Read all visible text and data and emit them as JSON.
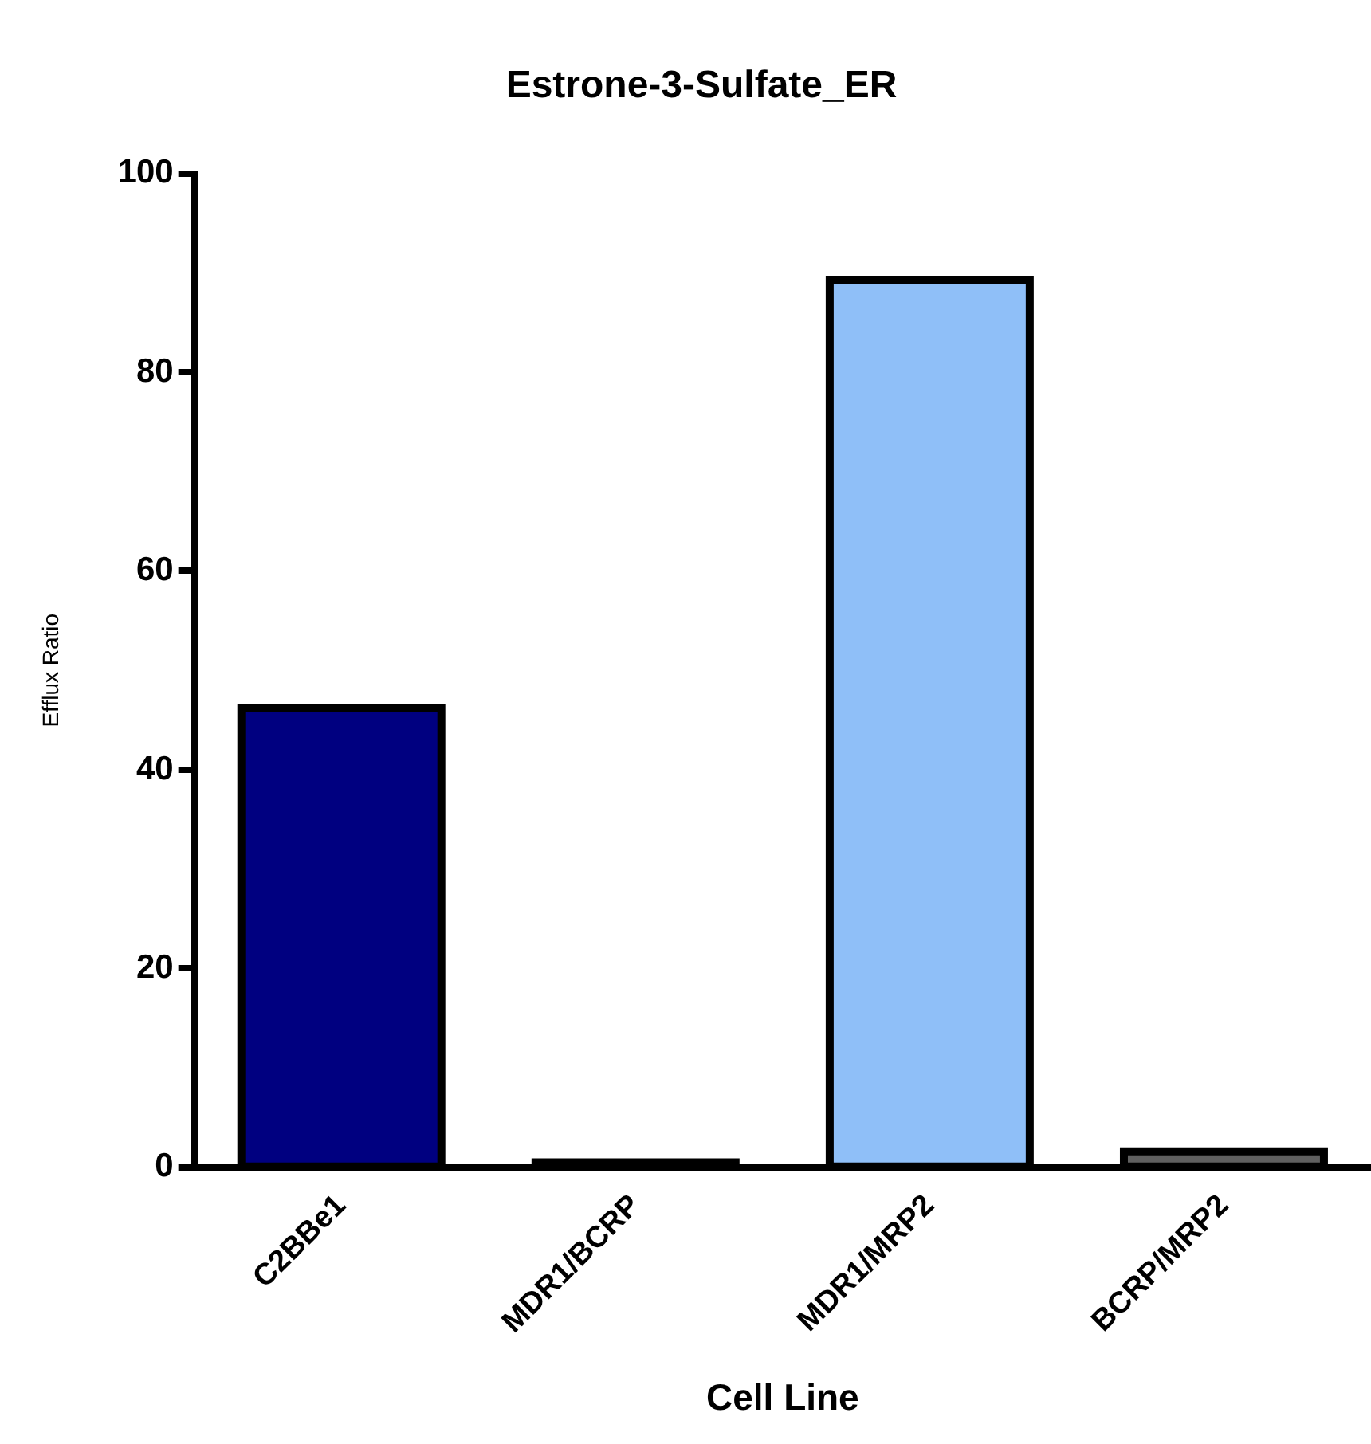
{
  "chart_data": {
    "type": "bar",
    "title": "Estrone-3-Sulfate_ER",
    "xlabel": "Cell Line",
    "ylabel": "Efflux Ratio",
    "categories": [
      "C2BBe1",
      "MDR1/BCRP",
      "MDR1/MRP2",
      "BCRP/MRP2"
    ],
    "values": [
      46.2,
      0.5,
      89.3,
      1.6
    ],
    "colors": [
      "#000080",
      "#303030",
      "#8fbff8",
      "#606060"
    ],
    "ylim": [
      0,
      100
    ],
    "yticks": [
      0,
      20,
      40,
      60,
      80,
      100
    ],
    "grid": false,
    "legend": false
  }
}
